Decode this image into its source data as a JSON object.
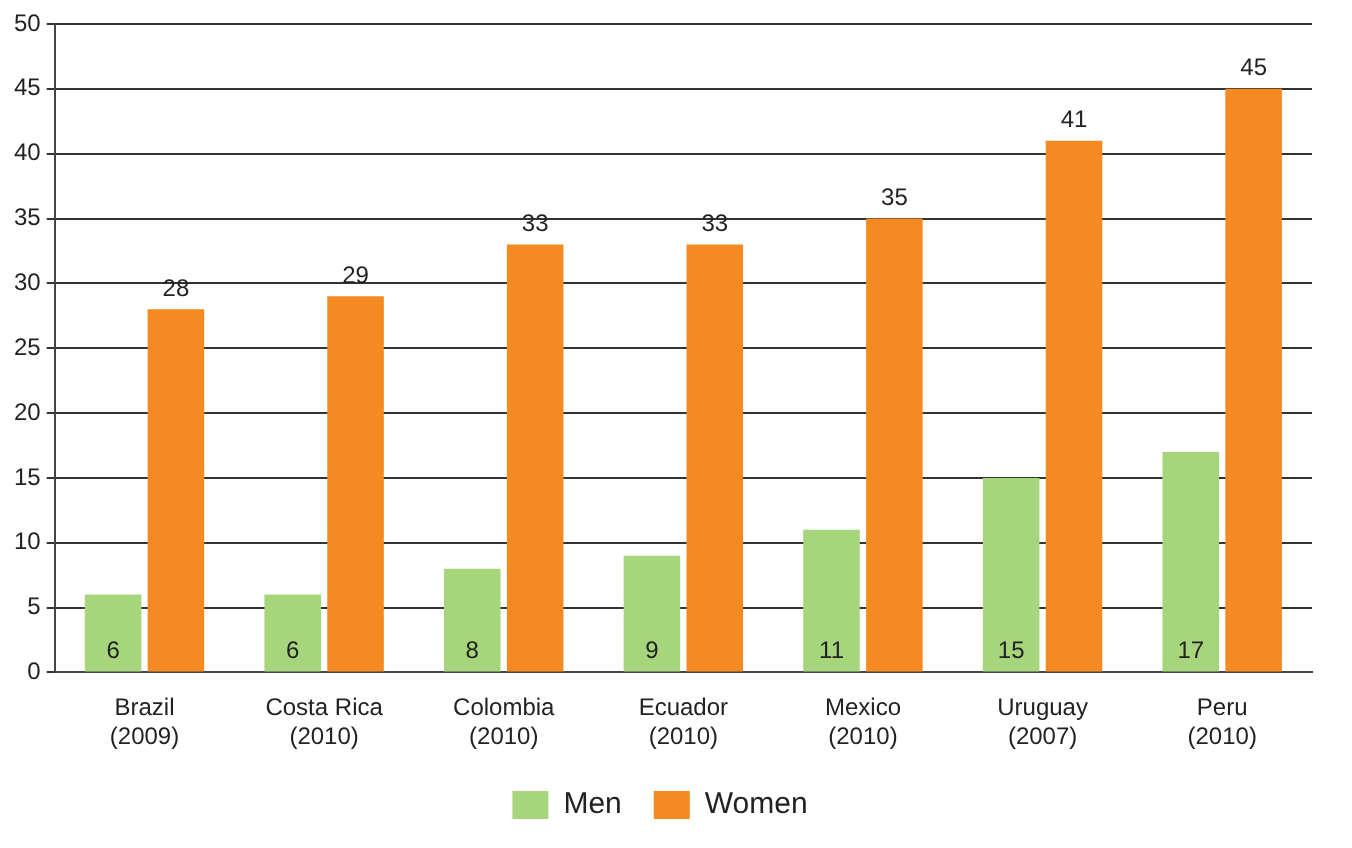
{
  "chart_data": {
    "type": "bar",
    "categories": [
      "Brazil (2009)",
      "Costa Rica (2010)",
      "Colombia (2010)",
      "Ecuador (2010)",
      "Mexico (2010)",
      "Uruguay (2007)",
      "Peru (2010)"
    ],
    "series": [
      {
        "name": "Men",
        "color": "#a6d57c",
        "values": [
          6,
          6,
          8,
          9,
          11,
          15,
          17
        ]
      },
      {
        "name": "Women",
        "color": "#f68a22",
        "values": [
          28,
          29,
          33,
          33,
          35,
          41,
          45
        ]
      }
    ],
    "ylim": [
      0,
      50
    ],
    "yticks": [
      0,
      5,
      10,
      15,
      20,
      25,
      30,
      35,
      40,
      45,
      50
    ],
    "grid": "y",
    "legend": "bottom",
    "data_labels": true
  }
}
